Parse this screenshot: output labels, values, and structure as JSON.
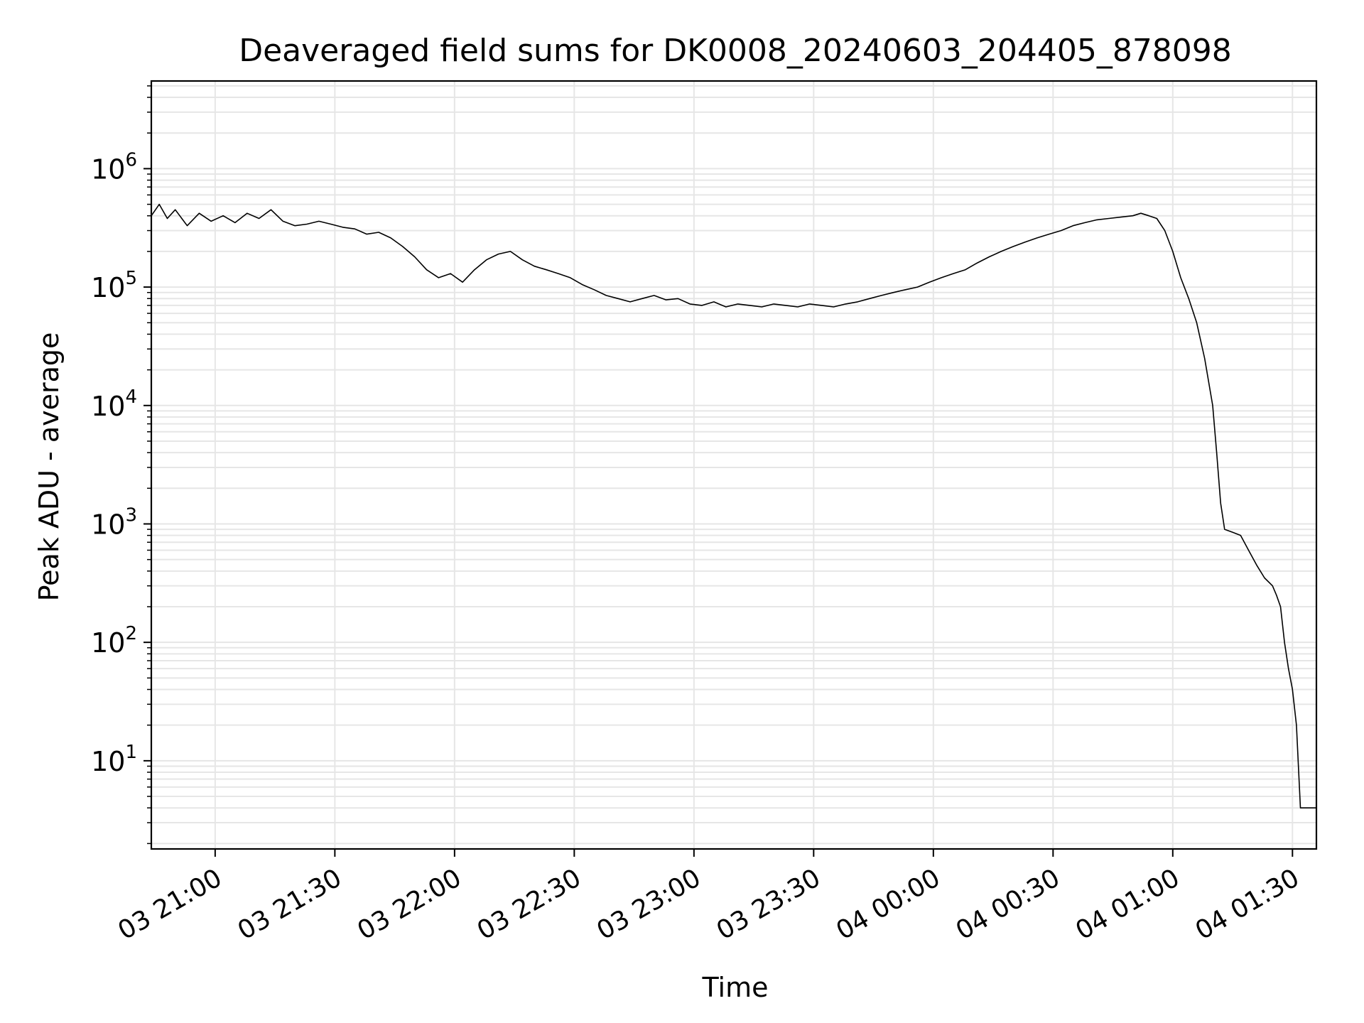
{
  "chart_data": {
    "type": "line",
    "title": "Deaveraged field sums for DK0008_20240603_204405_878098",
    "xlabel": "Time",
    "ylabel": "Peak ADU - average",
    "y_scale": "log",
    "xlim": [
      "2024-06-03 20:44",
      "2024-06-04 01:36"
    ],
    "ylim": [
      1.8,
      5500000
    ],
    "x_ticks": [
      {
        "t": "2024-06-03 21:00",
        "label": "03 21:00"
      },
      {
        "t": "2024-06-03 21:30",
        "label": "03 21:30"
      },
      {
        "t": "2024-06-03 22:00",
        "label": "03 22:00"
      },
      {
        "t": "2024-06-03 22:30",
        "label": "03 22:30"
      },
      {
        "t": "2024-06-03 23:00",
        "label": "03 23:00"
      },
      {
        "t": "2024-06-03 23:30",
        "label": "03 23:30"
      },
      {
        "t": "2024-06-04 00:00",
        "label": "04 00:00"
      },
      {
        "t": "2024-06-04 00:30",
        "label": "04 00:30"
      },
      {
        "t": "2024-06-04 01:00",
        "label": "04 01:00"
      },
      {
        "t": "2024-06-04 01:30",
        "label": "04 01:30"
      }
    ],
    "y_ticks": [
      {
        "value": 10,
        "base": "10",
        "exp": "1"
      },
      {
        "value": 100,
        "base": "10",
        "exp": "2"
      },
      {
        "value": 1000,
        "base": "10",
        "exp": "3"
      },
      {
        "value": 10000,
        "base": "10",
        "exp": "4"
      },
      {
        "value": 100000,
        "base": "10",
        "exp": "5"
      },
      {
        "value": 1000000,
        "base": "10",
        "exp": "6"
      }
    ],
    "grid": true,
    "line_color": "#000000",
    "grid_color": "#e6e6e6",
    "series": [
      {
        "points": [
          [
            "2024-06-03 20:44",
            400000
          ],
          [
            "2024-06-03 20:46",
            500000
          ],
          [
            "2024-06-03 20:48",
            380000
          ],
          [
            "2024-06-03 20:50",
            450000
          ],
          [
            "2024-06-03 20:53",
            330000
          ],
          [
            "2024-06-03 20:56",
            420000
          ],
          [
            "2024-06-03 20:59",
            360000
          ],
          [
            "2024-06-03 21:02",
            400000
          ],
          [
            "2024-06-03 21:05",
            350000
          ],
          [
            "2024-06-03 21:08",
            420000
          ],
          [
            "2024-06-03 21:11",
            380000
          ],
          [
            "2024-06-03 21:14",
            450000
          ],
          [
            "2024-06-03 21:17",
            360000
          ],
          [
            "2024-06-03 21:20",
            330000
          ],
          [
            "2024-06-03 21:23",
            340000
          ],
          [
            "2024-06-03 21:26",
            360000
          ],
          [
            "2024-06-03 21:29",
            340000
          ],
          [
            "2024-06-03 21:32",
            320000
          ],
          [
            "2024-06-03 21:35",
            310000
          ],
          [
            "2024-06-03 21:38",
            280000
          ],
          [
            "2024-06-03 21:41",
            290000
          ],
          [
            "2024-06-03 21:44",
            260000
          ],
          [
            "2024-06-03 21:47",
            220000
          ],
          [
            "2024-06-03 21:50",
            180000
          ],
          [
            "2024-06-03 21:53",
            140000
          ],
          [
            "2024-06-03 21:56",
            120000
          ],
          [
            "2024-06-03 21:59",
            130000
          ],
          [
            "2024-06-03 22:02",
            110000
          ],
          [
            "2024-06-03 22:05",
            140000
          ],
          [
            "2024-06-03 22:08",
            170000
          ],
          [
            "2024-06-03 22:11",
            190000
          ],
          [
            "2024-06-03 22:14",
            200000
          ],
          [
            "2024-06-03 22:17",
            170000
          ],
          [
            "2024-06-03 22:20",
            150000
          ],
          [
            "2024-06-03 22:23",
            140000
          ],
          [
            "2024-06-03 22:26",
            130000
          ],
          [
            "2024-06-03 22:29",
            120000
          ],
          [
            "2024-06-03 22:32",
            105000
          ],
          [
            "2024-06-03 22:35",
            95000
          ],
          [
            "2024-06-03 22:38",
            85000
          ],
          [
            "2024-06-03 22:41",
            80000
          ],
          [
            "2024-06-03 22:44",
            75000
          ],
          [
            "2024-06-03 22:47",
            80000
          ],
          [
            "2024-06-03 22:50",
            85000
          ],
          [
            "2024-06-03 22:53",
            78000
          ],
          [
            "2024-06-03 22:56",
            80000
          ],
          [
            "2024-06-03 22:59",
            72000
          ],
          [
            "2024-06-03 23:02",
            70000
          ],
          [
            "2024-06-03 23:05",
            75000
          ],
          [
            "2024-06-03 23:08",
            68000
          ],
          [
            "2024-06-03 23:11",
            72000
          ],
          [
            "2024-06-03 23:14",
            70000
          ],
          [
            "2024-06-03 23:17",
            68000
          ],
          [
            "2024-06-03 23:20",
            72000
          ],
          [
            "2024-06-03 23:23",
            70000
          ],
          [
            "2024-06-03 23:26",
            68000
          ],
          [
            "2024-06-03 23:29",
            72000
          ],
          [
            "2024-06-03 23:32",
            70000
          ],
          [
            "2024-06-03 23:35",
            68000
          ],
          [
            "2024-06-03 23:38",
            72000
          ],
          [
            "2024-06-03 23:41",
            75000
          ],
          [
            "2024-06-03 23:44",
            80000
          ],
          [
            "2024-06-03 23:47",
            85000
          ],
          [
            "2024-06-03 23:50",
            90000
          ],
          [
            "2024-06-03 23:53",
            95000
          ],
          [
            "2024-06-03 23:56",
            100000
          ],
          [
            "2024-06-03 23:59",
            110000
          ],
          [
            "2024-06-04 00:02",
            120000
          ],
          [
            "2024-06-04 00:05",
            130000
          ],
          [
            "2024-06-04 00:08",
            140000
          ],
          [
            "2024-06-04 00:11",
            160000
          ],
          [
            "2024-06-04 00:14",
            180000
          ],
          [
            "2024-06-04 00:17",
            200000
          ],
          [
            "2024-06-04 00:20",
            220000
          ],
          [
            "2024-06-04 00:23",
            240000
          ],
          [
            "2024-06-04 00:26",
            260000
          ],
          [
            "2024-06-04 00:29",
            280000
          ],
          [
            "2024-06-04 00:32",
            300000
          ],
          [
            "2024-06-04 00:35",
            330000
          ],
          [
            "2024-06-04 00:38",
            350000
          ],
          [
            "2024-06-04 00:41",
            370000
          ],
          [
            "2024-06-04 00:44",
            380000
          ],
          [
            "2024-06-04 00:47",
            390000
          ],
          [
            "2024-06-04 00:50",
            400000
          ],
          [
            "2024-06-04 00:52",
            420000
          ],
          [
            "2024-06-04 00:54",
            400000
          ],
          [
            "2024-06-04 00:56",
            380000
          ],
          [
            "2024-06-04 00:58",
            300000
          ],
          [
            "2024-06-04 01:00",
            200000
          ],
          [
            "2024-06-04 01:02",
            120000
          ],
          [
            "2024-06-04 01:04",
            80000
          ],
          [
            "2024-06-04 01:06",
            50000
          ],
          [
            "2024-06-04 01:08",
            25000
          ],
          [
            "2024-06-04 01:10",
            10000
          ],
          [
            "2024-06-04 01:11",
            4000
          ],
          [
            "2024-06-04 01:12",
            1500
          ],
          [
            "2024-06-04 01:13",
            900
          ],
          [
            "2024-06-04 01:15",
            850
          ],
          [
            "2024-06-04 01:17",
            800
          ],
          [
            "2024-06-04 01:19",
            600
          ],
          [
            "2024-06-04 01:21",
            450
          ],
          [
            "2024-06-04 01:23",
            350
          ],
          [
            "2024-06-04 01:25",
            300
          ],
          [
            "2024-06-04 01:26",
            250
          ],
          [
            "2024-06-04 01:27",
            200
          ],
          [
            "2024-06-04 01:28",
            100
          ],
          [
            "2024-06-04 01:29",
            60
          ],
          [
            "2024-06-04 01:30",
            40
          ],
          [
            "2024-06-04 01:31",
            20
          ],
          [
            "2024-06-04 01:32",
            4
          ],
          [
            "2024-06-04 01:33",
            4
          ],
          [
            "2024-06-04 01:34",
            4
          ],
          [
            "2024-06-04 01:35",
            4
          ],
          [
            "2024-06-04 01:36",
            4
          ]
        ]
      }
    ]
  }
}
